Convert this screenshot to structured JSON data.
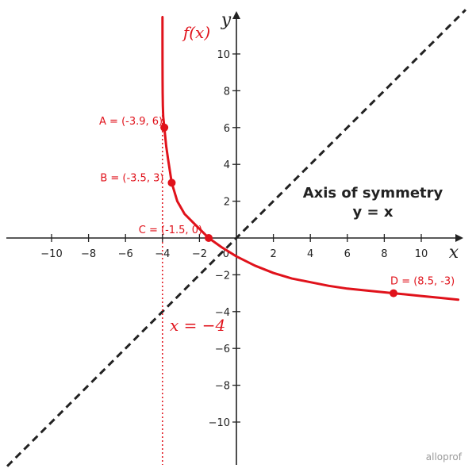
{
  "chart_data": {
    "type": "line",
    "xlabel": "x",
    "ylabel": "y",
    "xlim": [
      -12,
      12
    ],
    "ylim": [
      -12.3,
      12
    ],
    "xticks": [
      -10,
      -8,
      -6,
      -4,
      -2,
      2,
      4,
      6,
      8,
      10
    ],
    "yticks": [
      -10,
      -8,
      -6,
      -4,
      -2,
      2,
      4,
      6,
      8,
      10
    ],
    "tick_labels": {
      "x": [
        "−10",
        "−8",
        "−6",
        "−4",
        "−2",
        "2",
        "4",
        "6",
        "8",
        "10"
      ],
      "y": [
        "−10",
        "−8",
        "−6",
        "−4",
        "−2",
        "2",
        "4",
        "6",
        "8",
        "10"
      ]
    },
    "origin_label": "0",
    "grid": false,
    "curve": {
      "label": "f(x)",
      "color": "#e0121b",
      "x": [
        -3.9999,
        -3.9995,
        -3.998,
        -3.995,
        -3.99,
        -3.98,
        -3.96,
        -3.9,
        -3.8,
        -3.7,
        -3.5,
        -3.2,
        -2.8,
        -2.2,
        -1.5,
        -0.8,
        0,
        1,
        2,
        3,
        4,
        5,
        6,
        7,
        8.5,
        10,
        11,
        12
      ],
      "y": [
        12.0,
        10.7,
        9.5,
        8.6,
        7.9,
        7.2,
        6.6,
        6.0,
        5.0,
        4.3,
        3.0,
        2.0,
        1.3,
        0.7,
        0.0,
        -0.5,
        -1.0,
        -1.5,
        -1.9,
        -2.2,
        -2.4,
        -2.6,
        -2.75,
        -2.85,
        -3.0,
        -3.15,
        -3.25,
        -3.35
      ]
    },
    "asymptote": {
      "x": -4,
      "label": "x = −4",
      "color": "#e0121b"
    },
    "symmetry_axis": {
      "label_line1": "Axis of symmetry",
      "label_line2": "y = x",
      "color": "#222222"
    },
    "points": [
      {
        "label": "A = (-3.9, 6)",
        "x": -3.9,
        "y": 6
      },
      {
        "label": "B = (-3.5, 3)",
        "x": -3.5,
        "y": 3
      },
      {
        "label": "C = (-1.5, 0)",
        "x": -1.5,
        "y": 0
      },
      {
        "label": "D = (8.5, -3)",
        "x": 8.5,
        "y": -3
      }
    ],
    "watermark": "alloprof"
  }
}
